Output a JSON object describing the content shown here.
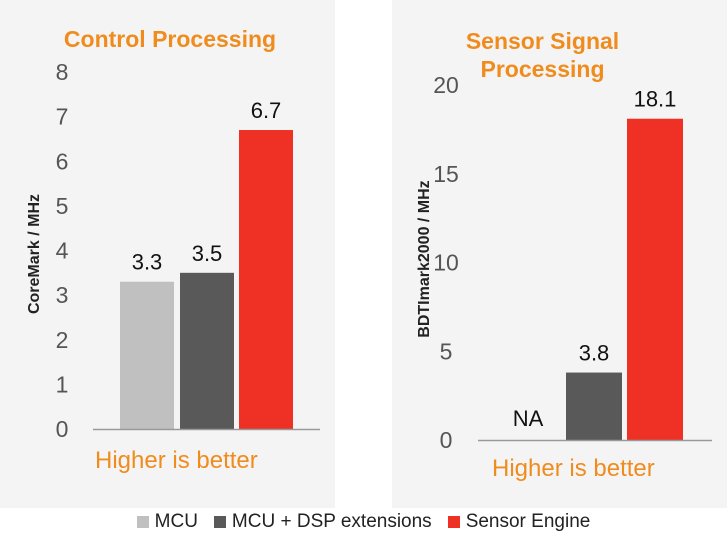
{
  "chart_data": [
    {
      "type": "bar",
      "title": "Control Processing",
      "ylabel": "CoreMark / MHz",
      "ylim": [
        0,
        8
      ],
      "yticks": [
        "0",
        "1",
        "2",
        "3",
        "4",
        "5",
        "6",
        "7",
        "8"
      ],
      "categories": [
        "MCU",
        "MCU + DSP extensions",
        "Sensor Engine"
      ],
      "values": [
        3.3,
        3.5,
        6.7
      ],
      "data_labels": [
        "3.3",
        "3.5",
        "6.7"
      ],
      "annotation": "Higher is better"
    },
    {
      "type": "bar",
      "title": "Sensor Signal Processing",
      "ylabel": "BDTImark2000 / MHz",
      "ylim": [
        0,
        20
      ],
      "yticks": [
        "0",
        "5",
        "10",
        "15",
        "20"
      ],
      "categories": [
        "MCU",
        "MCU + DSP extensions",
        "Sensor Engine"
      ],
      "values": [
        null,
        3.8,
        18.1
      ],
      "data_labels": [
        "NA",
        "3.8",
        "18.1"
      ],
      "annotation": "Higher is better"
    }
  ],
  "legend": [
    {
      "label": "MCU",
      "color": "#c0c0c0"
    },
    {
      "label": "MCU + DSP extensions",
      "color": "#595959"
    },
    {
      "label": "Sensor Engine",
      "color": "#ee3124"
    }
  ]
}
